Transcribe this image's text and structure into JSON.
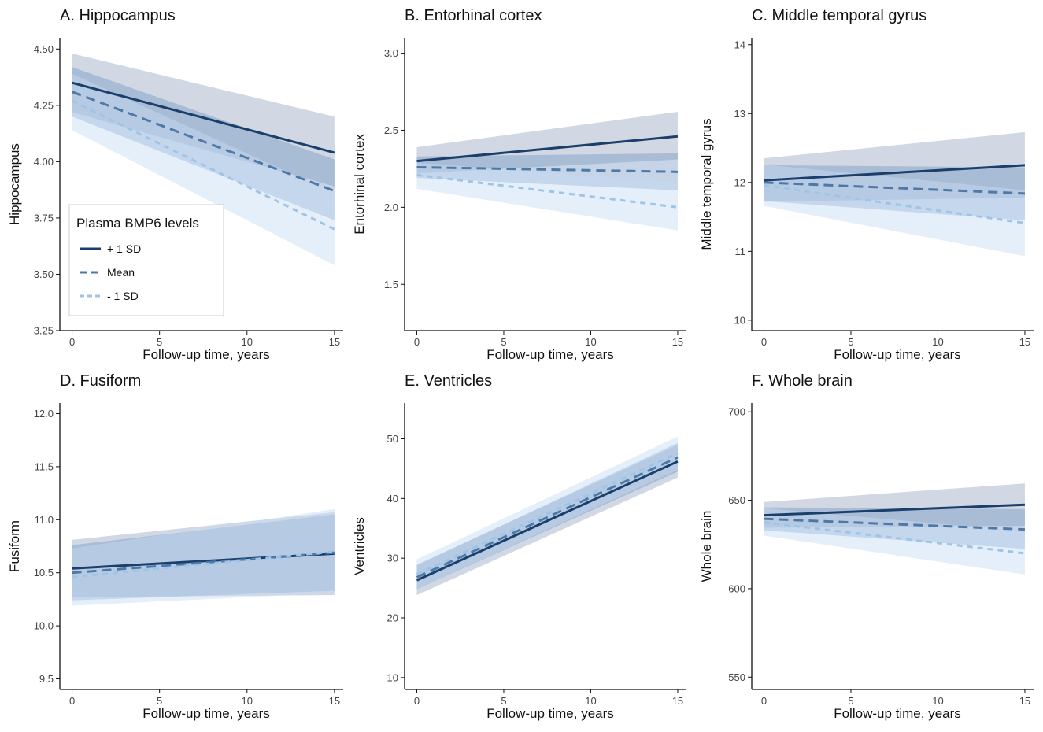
{
  "legend": {
    "title": "Plasma BMP6 levels",
    "position": "bottom-left of panel A",
    "entries": [
      {
        "label": "+ 1 SD",
        "style": "solid"
      },
      {
        "label": "Mean",
        "style": "dashed"
      },
      {
        "label": "- 1 SD",
        "style": "dotted-dash"
      }
    ]
  },
  "colors": {
    "plus_sd": "#1b3f6b",
    "mean": "#4e79a7",
    "minus_sd": "#9ec5e8",
    "band_plus_sd": "#9aa8c0",
    "band_mean": "#6f94c0",
    "band_minus_sd": "#c5dcf5"
  },
  "chart_data": [
    {
      "id": "A",
      "type": "line",
      "title": "A. Hippocampus",
      "xlabel": "Follow-up time, years",
      "ylabel": "Hippocampus",
      "xlim": [
        -0.7,
        15.5
      ],
      "ylim": [
        3.25,
        4.55
      ],
      "xticks": [
        "0",
        "5",
        "10",
        "15"
      ],
      "xtick_values": [
        0,
        5,
        10,
        15
      ],
      "yticks": [
        "3.25",
        "3.50",
        "3.75",
        "4.00",
        "4.25",
        "4.50"
      ],
      "ytick_values": [
        3.25,
        3.5,
        3.75,
        4.0,
        4.25,
        4.5
      ],
      "has_legend": true,
      "series": [
        {
          "name": "+ 1 SD",
          "x": [
            0,
            15
          ],
          "y": [
            4.35,
            4.04
          ],
          "lower": [
            4.22,
            3.89
          ],
          "upper": [
            4.48,
            4.2
          ]
        },
        {
          "name": "Mean",
          "x": [
            0,
            15
          ],
          "y": [
            4.31,
            3.87
          ],
          "lower": [
            4.2,
            3.74
          ],
          "upper": [
            4.42,
            4.01
          ]
        },
        {
          "name": "- 1 SD",
          "x": [
            0,
            15
          ],
          "y": [
            4.27,
            3.7
          ],
          "lower": [
            4.14,
            3.54
          ],
          "upper": [
            4.39,
            3.86
          ]
        }
      ]
    },
    {
      "id": "B",
      "type": "line",
      "title": "B. Entorhinal cortex",
      "xlabel": "Follow-up time, years",
      "ylabel": "Entorhinal cortex",
      "xlim": [
        -0.7,
        15.5
      ],
      "ylim": [
        1.2,
        3.1
      ],
      "xticks": [
        "0",
        "5",
        "10",
        "15"
      ],
      "xtick_values": [
        0,
        5,
        10,
        15
      ],
      "yticks": [
        "1.5",
        "2.0",
        "2.5",
        "3.0"
      ],
      "ytick_values": [
        1.5,
        2.0,
        2.5,
        3.0
      ],
      "has_legend": false,
      "series": [
        {
          "name": "+ 1 SD",
          "x": [
            0,
            15
          ],
          "y": [
            2.3,
            2.46
          ],
          "lower": [
            2.22,
            2.31
          ],
          "upper": [
            2.39,
            2.62
          ]
        },
        {
          "name": "Mean",
          "x": [
            0,
            15
          ],
          "y": [
            2.26,
            2.23
          ],
          "lower": [
            2.19,
            2.11
          ],
          "upper": [
            2.33,
            2.35
          ]
        },
        {
          "name": "- 1 SD",
          "x": [
            0,
            15
          ],
          "y": [
            2.21,
            2.0
          ],
          "lower": [
            2.12,
            1.85
          ],
          "upper": [
            2.29,
            2.16
          ]
        }
      ]
    },
    {
      "id": "C",
      "type": "line",
      "title": "C. Middle temporal gyrus",
      "xlabel": "Follow-up time, years",
      "ylabel": "Middle temporal gyrus",
      "xlim": [
        -0.7,
        15.5
      ],
      "ylim": [
        9.85,
        14.1
      ],
      "xticks": [
        "0",
        "5",
        "10",
        "15"
      ],
      "xtick_values": [
        0,
        5,
        10,
        15
      ],
      "yticks": [
        "10",
        "11",
        "12",
        "13",
        "14"
      ],
      "ytick_values": [
        10,
        11,
        12,
        13,
        14
      ],
      "has_legend": false,
      "series": [
        {
          "name": "+ 1 SD",
          "x": [
            0,
            15
          ],
          "y": [
            12.03,
            12.25
          ],
          "lower": [
            11.72,
            11.78
          ],
          "upper": [
            12.35,
            12.73
          ]
        },
        {
          "name": "Mean",
          "x": [
            0,
            15
          ],
          "y": [
            12.0,
            11.84
          ],
          "lower": [
            11.73,
            11.45
          ],
          "upper": [
            12.25,
            12.22
          ]
        },
        {
          "name": "- 1 SD",
          "x": [
            0,
            15
          ],
          "y": [
            11.96,
            11.41
          ],
          "lower": [
            11.66,
            10.93
          ],
          "upper": [
            12.26,
            11.89
          ]
        }
      ]
    },
    {
      "id": "D",
      "type": "line",
      "title": "D. Fusiform",
      "xlabel": "Follow-up time, years",
      "ylabel": "Fusiform",
      "xlim": [
        -0.7,
        15.5
      ],
      "ylim": [
        9.4,
        12.1
      ],
      "xticks": [
        "0",
        "5",
        "10",
        "15"
      ],
      "xtick_values": [
        0,
        5,
        10,
        15
      ],
      "yticks": [
        "9.5",
        "10.0",
        "10.5",
        "11.0",
        "11.5",
        "12.0"
      ],
      "ytick_values": [
        9.5,
        10.0,
        10.5,
        11.0,
        11.5,
        12.0
      ],
      "has_legend": false,
      "series": [
        {
          "name": "+ 1 SD",
          "x": [
            0,
            15
          ],
          "y": [
            10.54,
            10.68
          ],
          "lower": [
            10.27,
            10.29
          ],
          "upper": [
            10.81,
            11.07
          ]
        },
        {
          "name": "Mean",
          "x": [
            0,
            15
          ],
          "y": [
            10.5,
            10.69
          ],
          "lower": [
            10.24,
            10.33
          ],
          "upper": [
            10.76,
            11.05
          ]
        },
        {
          "name": "- 1 SD",
          "x": [
            0,
            15
          ],
          "y": [
            10.46,
            10.7
          ],
          "lower": [
            10.19,
            10.31
          ],
          "upper": [
            10.73,
            11.1
          ]
        }
      ]
    },
    {
      "id": "E",
      "type": "line",
      "title": "E. Ventricles",
      "xlabel": "Follow-up time, years",
      "ylabel": "Ventricles",
      "xlim": [
        -0.7,
        15.5
      ],
      "ylim": [
        8,
        56
      ],
      "xticks": [
        "0",
        "5",
        "10",
        "15"
      ],
      "xtick_values": [
        0,
        5,
        10,
        15
      ],
      "yticks": [
        "10",
        "20",
        "30",
        "40",
        "50"
      ],
      "ytick_values": [
        10,
        20,
        30,
        40,
        50
      ],
      "has_legend": false,
      "series": [
        {
          "name": "+ 1 SD",
          "x": [
            0,
            15
          ],
          "y": [
            26.3,
            46.2
          ],
          "lower": [
            23.8,
            43.5
          ],
          "upper": [
            28.9,
            49.0
          ]
        },
        {
          "name": "Mean",
          "x": [
            0,
            15
          ],
          "y": [
            26.8,
            46.9
          ],
          "lower": [
            24.8,
            44.5
          ],
          "upper": [
            28.8,
            49.3
          ]
        },
        {
          "name": "- 1 SD",
          "x": [
            0,
            15
          ],
          "y": [
            27.3,
            47.6
          ],
          "lower": [
            24.8,
            44.8
          ],
          "upper": [
            29.8,
            50.4
          ]
        }
      ]
    },
    {
      "id": "F",
      "type": "line",
      "title": "F. Whole brain",
      "xlabel": "Follow-up time, years",
      "ylabel": "Whole brain",
      "xlim": [
        -0.7,
        15.5
      ],
      "ylim": [
        543,
        705
      ],
      "xticks": [
        "0",
        "5",
        "10",
        "15"
      ],
      "xtick_values": [
        0,
        5,
        10,
        15
      ],
      "yticks": [
        "550",
        "600",
        "650",
        "700"
      ],
      "ytick_values": [
        550,
        600,
        650,
        700
      ],
      "has_legend": false,
      "series": [
        {
          "name": "+ 1 SD",
          "x": [
            0,
            15
          ],
          "y": [
            641.5,
            647.5
          ],
          "lower": [
            634.5,
            635.5
          ],
          "upper": [
            649.0,
            659.5
          ]
        },
        {
          "name": "Mean",
          "x": [
            0,
            15
          ],
          "y": [
            639.5,
            633.5
          ],
          "lower": [
            633.0,
            622.5
          ],
          "upper": [
            646.0,
            645.0
          ]
        },
        {
          "name": "- 1 SD",
          "x": [
            0,
            15
          ],
          "y": [
            637.5,
            620.0
          ],
          "lower": [
            630.0,
            608.0
          ],
          "upper": [
            645.5,
            632.5
          ]
        }
      ]
    }
  ]
}
